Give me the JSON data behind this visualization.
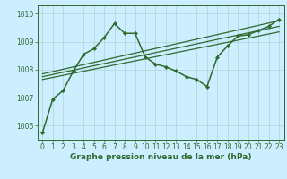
{
  "title": "Graphe pression niveau de la mer (hPa)",
  "bg_color": "#cceeff",
  "grid_color": "#b0d4d4",
  "line_color": "#2d6a2d",
  "xlim": [
    -0.5,
    23.5
  ],
  "ylim": [
    1005.5,
    1010.3
  ],
  "yticks": [
    1006,
    1007,
    1008,
    1009,
    1010
  ],
  "xticks": [
    0,
    1,
    2,
    3,
    4,
    5,
    6,
    7,
    8,
    9,
    10,
    11,
    12,
    13,
    14,
    15,
    16,
    17,
    18,
    19,
    20,
    21,
    22,
    23
  ],
  "series": [
    {
      "x": [
        0,
        1,
        2,
        3,
        4,
        5,
        6,
        7,
        8,
        9,
        10,
        11,
        12,
        13,
        14,
        15,
        16,
        17,
        18,
        19,
        20,
        21,
        22,
        23
      ],
      "y": [
        1005.75,
        1006.95,
        1007.25,
        1007.95,
        1008.55,
        1008.75,
        1009.15,
        1009.65,
        1009.3,
        1009.3,
        1008.45,
        1008.2,
        1008.1,
        1007.95,
        1007.75,
        1007.65,
        1007.4,
        1008.45,
        1008.85,
        1009.2,
        1009.25,
        1009.4,
        1009.55,
        1009.8
      ],
      "marker": "D",
      "markersize": 2.2,
      "linewidth": 1.1
    },
    {
      "x": [
        0,
        23
      ],
      "y": [
        1007.85,
        1009.75
      ],
      "marker": null,
      "linewidth": 0.9
    },
    {
      "x": [
        0,
        23
      ],
      "y": [
        1007.75,
        1009.55
      ],
      "marker": null,
      "linewidth": 0.9
    },
    {
      "x": [
        0,
        23
      ],
      "y": [
        1007.65,
        1009.35
      ],
      "marker": null,
      "linewidth": 0.9
    }
  ],
  "title_fontsize": 6.5,
  "tick_fontsize": 5.5,
  "tick_color": "#2d6a2d",
  "spine_color": "#2d6a2d"
}
